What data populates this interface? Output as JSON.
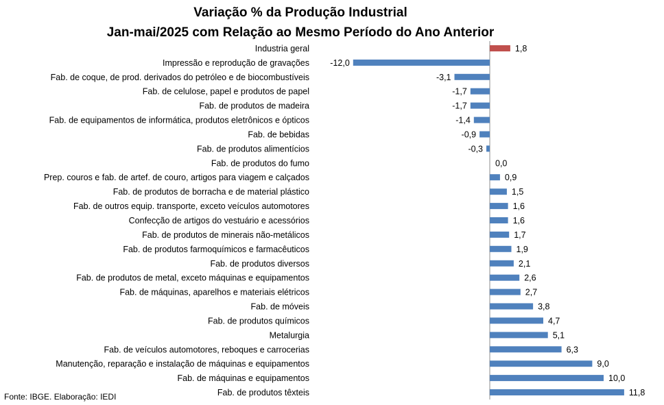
{
  "chart_data": {
    "type": "bar",
    "orientation": "horizontal",
    "title": "Variação % da Produção Industrial",
    "subtitle": "Jan-mai/2025 com Relação ao Mesmo Período do Ano Anterior",
    "source": "Fonte: IBGE. Elaboração: IEDI",
    "colors": {
      "highlight": "#c0504d",
      "default": "#4f81bd"
    },
    "grid": false,
    "xlim": [
      -12.0,
      11.8
    ],
    "categories": [
      "Industria geral",
      "Impressão e reprodução de gravações",
      "Fab. de coque, de prod. derivados do petróleo e de biocombustíveis",
      "Fab. de celulose, papel e produtos de papel",
      "Fab. de produtos de madeira",
      "Fab. de equipamentos de informática, produtos eletrônicos e ópticos",
      "Fab. de bebidas",
      "Fab. de produtos alimentícios",
      "Fab. de produtos do fumo",
      "Prep. couros e fab. de artef. de couro, artigos para viagem e calçados",
      "Fab. de produtos de borracha e de material plástico",
      "Fab. de outros equip. transporte, exceto veículos automotores",
      "Confecção de artigos do vestuário e acessórios",
      "Fab. de produtos de minerais não-metálicos",
      "Fab. de produtos farmoquímicos e farmacêuticos",
      "Fab. de produtos diversos",
      "Fab. de produtos de metal, exceto máquinas e equipamentos",
      "Fab. de máquinas, aparelhos e materiais elétricos",
      "Fab. de móveis",
      "Fab. de produtos químicos",
      "Metalurgia",
      "Fab. de veículos automotores, reboques e carrocerias",
      "Manutenção, reparação e instalação de máquinas e equipamentos",
      "Fab. de máquinas e equipamentos",
      "Fab. de produtos têxteis"
    ],
    "values": [
      1.8,
      -12.0,
      -3.1,
      -1.7,
      -1.7,
      -1.4,
      -0.9,
      -0.3,
      0.0,
      0.9,
      1.5,
      1.6,
      1.6,
      1.7,
      1.9,
      2.1,
      2.6,
      2.7,
      3.8,
      4.7,
      5.1,
      6.3,
      9.0,
      10.0,
      11.8
    ],
    "value_labels": [
      "1,8",
      "-12,0",
      "-3,1",
      "-1,7",
      "-1,7",
      "-1,4",
      "-0,9",
      "-0,3",
      "0,0",
      "0,9",
      "1,5",
      "1,6",
      "1,6",
      "1,7",
      "1,9",
      "2,1",
      "2,6",
      "2,7",
      "3,8",
      "4,7",
      "5,1",
      "6,3",
      "9,0",
      "10,0",
      "11,8"
    ],
    "highlight_index": 0
  }
}
